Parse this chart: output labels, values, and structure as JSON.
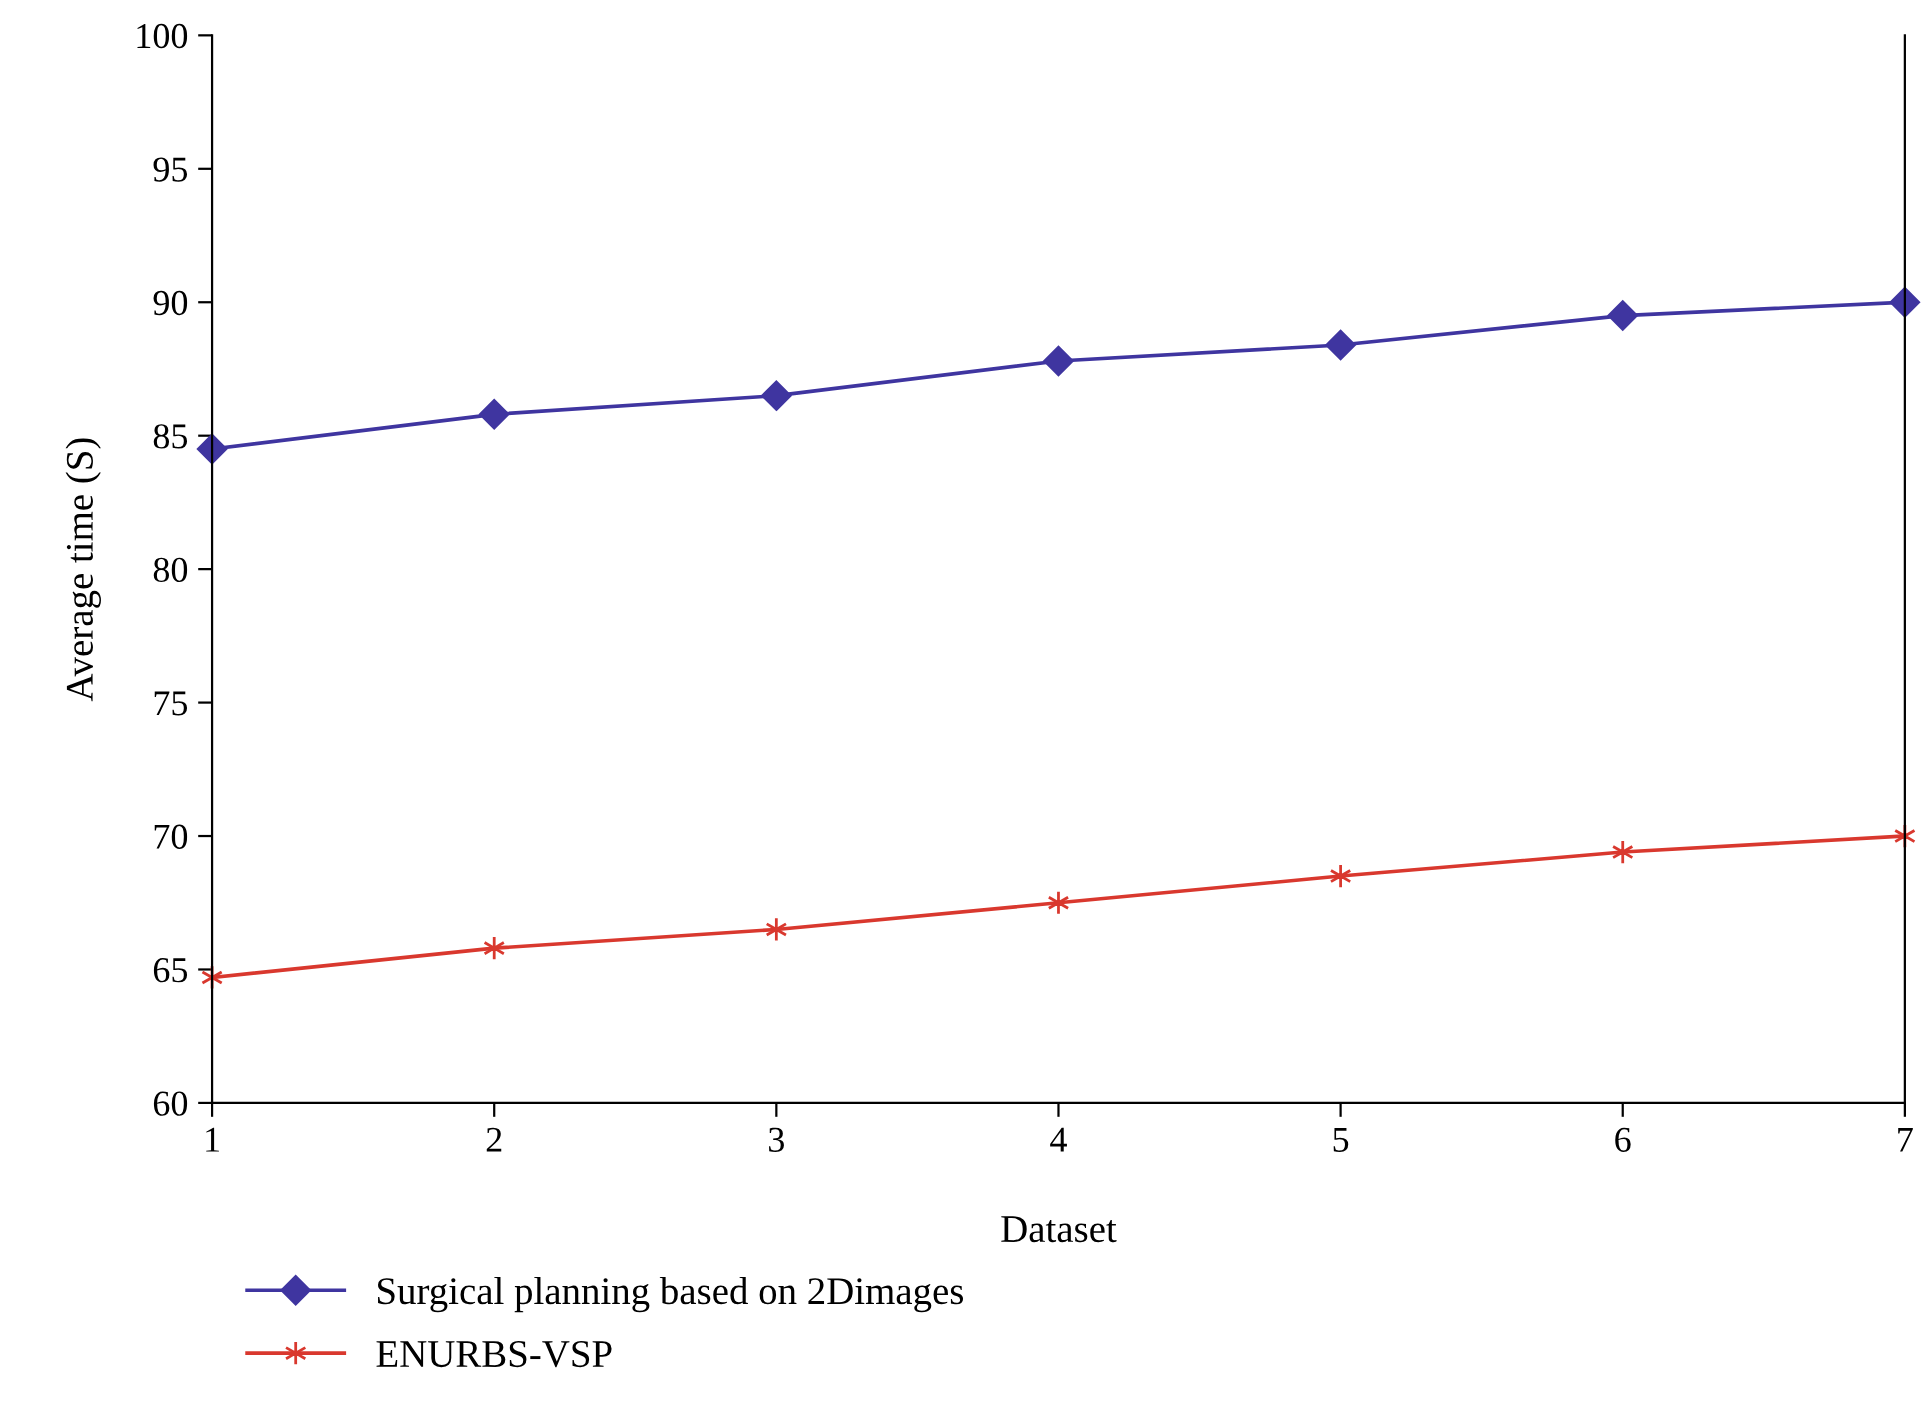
{
  "chart_data": {
    "type": "line",
    "xlabel": "Dataset",
    "ylabel": "Average time (S)",
    "x": [
      1,
      2,
      3,
      4,
      5,
      6,
      7
    ],
    "xlim": [
      1,
      7
    ],
    "xticks": [
      1,
      2,
      3,
      4,
      5,
      6,
      7
    ],
    "ylim": [
      60,
      100
    ],
    "yticks": [
      60,
      65,
      70,
      75,
      80,
      85,
      90,
      95,
      100
    ],
    "grid": false,
    "legend": "bottom",
    "line_style": "solid",
    "series": [
      {
        "name": "Surgical planning based on 2Dimages",
        "color": "#3f35a0",
        "marker": "diamond",
        "values": [
          84.5,
          85.8,
          86.5,
          87.8,
          88.4,
          89.5,
          90.0
        ]
      },
      {
        "name": "ENURBS-VSP",
        "color": "#d9382e",
        "marker": "cross",
        "values": [
          64.7,
          65.8,
          66.5,
          67.5,
          68.5,
          69.4,
          70.0
        ]
      }
    ]
  }
}
